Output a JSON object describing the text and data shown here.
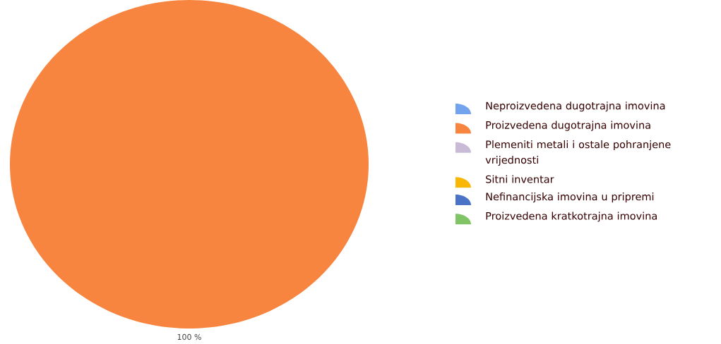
{
  "chart_data": {
    "type": "pie",
    "categories": [
      "Neproizvedena dugotrajna imovina",
      "Proizvedena dugotrajna imovina",
      "Plemeniti metali i ostale pohranjene vrijednosti",
      "Sitni inventar",
      "Nefinancijska imovina u pripremi",
      "Proizvedena kratkotrajna imovina"
    ],
    "values": [
      0,
      100,
      0,
      0,
      0,
      0
    ],
    "colors": [
      "#72a3ec",
      "#f7843f",
      "#c9bad6",
      "#f8b704",
      "#4a72c6",
      "#80c466"
    ],
    "value_labels": [
      null,
      "100 %",
      null,
      null,
      null,
      null
    ],
    "legend": "right"
  }
}
